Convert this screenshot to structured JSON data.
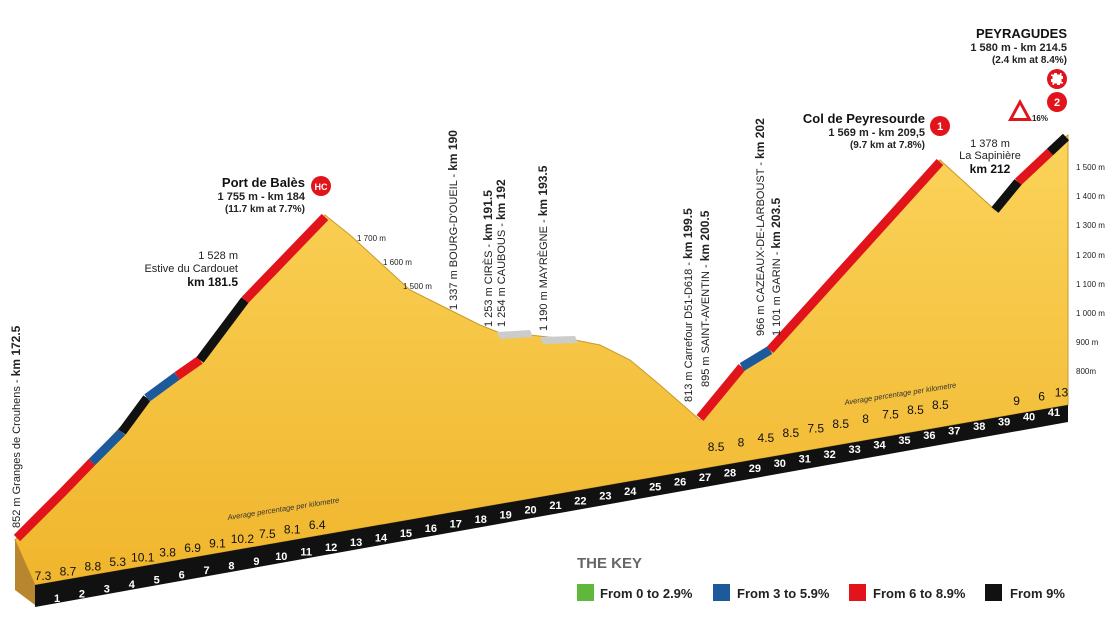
{
  "climbs": [
    {
      "name": "Port de Balès",
      "detail": "1 755 m - km 184",
      "length": "(11.7 km at 7.7%)",
      "badge": "HC"
    },
    {
      "name": "Col de Peyresourde",
      "detail": "1 569 m - km 209,5",
      "length": "(9.7 km at 7.8%)",
      "badge": "1"
    },
    {
      "name": "PEYRAGUDES",
      "detail": "1 580 m - km 214.5",
      "length": "(2.4 km at 8.4%)",
      "badge": "2"
    }
  ],
  "waypoints": [
    {
      "label": "852 m  Granges de Crouhens - ",
      "km": "km 172.5"
    },
    {
      "label": "1 337 m  BOURG-D'OUEIL - ",
      "km": "km 190"
    },
    {
      "label": "1 253 m  CIRÈS - ",
      "km": "km 191.5"
    },
    {
      "label": "1 254 m  CAUBOUS - ",
      "km": "km 192"
    },
    {
      "label": "1 190 m  MAYRÈGNE - ",
      "km": "km 193.5"
    },
    {
      "label": "813 m  Carrefour D51-D618 - ",
      "km": "km 199.5"
    },
    {
      "label": "895 m  SAINT-AVENTIN - ",
      "km": "km 200.5"
    },
    {
      "label": "966 m  CAZEAUX-DE-LARBOUST - ",
      "km": "km 202"
    },
    {
      "label": "1 101 m  GARIN - ",
      "km": "km 203.5"
    }
  ],
  "spot_points": [
    {
      "altitude": "1 528 m",
      "name": "Estive du Cardouet",
      "km": "km 181.5"
    },
    {
      "altitude": "1 378 m",
      "name": "La Sapinière",
      "km": "km 212"
    }
  ],
  "slope_altitudes": [
    "1 700 m",
    "1 600 m",
    "1 500 m"
  ],
  "altitude_scale": [
    "1 500 m",
    "1 400 m",
    "1 300 m",
    "1 200 m",
    "1 100 m",
    "1 000 m",
    "900 m",
    "800m"
  ],
  "gradient_note": "16%",
  "average_label": "Average percentage per kilometre",
  "km_markers": [
    1,
    2,
    3,
    4,
    5,
    6,
    7,
    8,
    9,
    10,
    11,
    12,
    13,
    14,
    15,
    16,
    17,
    18,
    19,
    20,
    21,
    22,
    23,
    24,
    25,
    26,
    27,
    28,
    29,
    30,
    31,
    32,
    33,
    34,
    35,
    36,
    37,
    38,
    39,
    40,
    41
  ],
  "gradients_start": [
    7.3,
    8.7,
    8.8,
    5.3,
    10.1,
    3.8,
    6.9,
    9.1,
    10.2,
    7.5,
    8.1,
    6.4
  ],
  "gradients_mid": [
    8.5,
    8,
    4.5,
    8.5,
    7.5,
    8.5,
    8,
    7.5,
    8.5,
    8.5
  ],
  "gradients_end": [
    9,
    6,
    13
  ],
  "key": {
    "title": "THE KEY",
    "items": [
      "From 0 to 2.9%",
      "From 3 to 5.9%",
      "From 6 to 8.9%",
      "From 9%"
    ]
  }
}
